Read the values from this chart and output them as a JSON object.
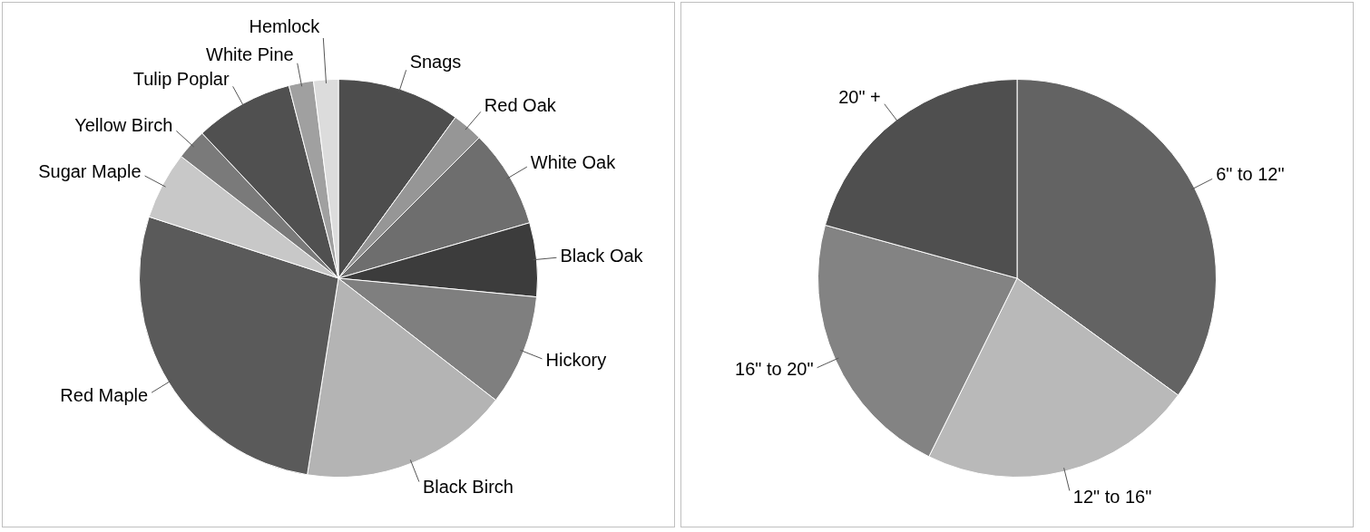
{
  "chart_data": [
    {
      "type": "pie",
      "categories": [
        "Snags",
        "Red Oak",
        "White Oak",
        "Black Oak",
        "Hickory",
        "Black Birch",
        "Red Maple",
        "Sugar Maple",
        "Yellow Birch",
        "Tulip Poplar",
        "White Pine",
        "Hemlock"
      ],
      "values": [
        10,
        2.5,
        8,
        6,
        9,
        17,
        27.5,
        5.5,
        2.5,
        8,
        2,
        2
      ],
      "colors": [
        "#4d4d4d",
        "#969696",
        "#6e6e6e",
        "#3c3c3c",
        "#7f7f7f",
        "#b4b4b4",
        "#5a5a5a",
        "#c8c8c8",
        "#7a7a7a",
        "#505050",
        "#a0a0a0",
        "#dcdcdc"
      ],
      "legend": false
    },
    {
      "type": "pie",
      "categories": [
        "6\" to 12\"",
        "12\" to 16\"",
        "16\" to 20\"",
        "20\" +"
      ],
      "values": [
        35,
        22.3,
        22,
        20.7
      ],
      "colors": [
        "#636363",
        "#b9b9b9",
        "#838383",
        "#4f4f4f"
      ],
      "legend": false
    }
  ]
}
